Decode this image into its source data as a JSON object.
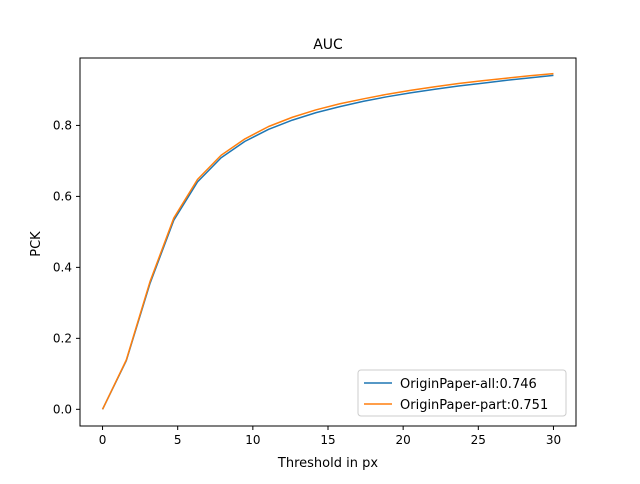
{
  "chart_data": {
    "type": "line",
    "title": "AUC",
    "xlabel": "Threshold in px",
    "ylabel": "PCK",
    "xlim": [
      -1.5,
      31.5
    ],
    "ylim": [
      -0.047,
      0.99
    ],
    "xticks": [
      0,
      5,
      10,
      15,
      20,
      25,
      30
    ],
    "xtick_labels": [
      "0",
      "5",
      "10",
      "15",
      "20",
      "25",
      "30"
    ],
    "yticks": [
      0.0,
      0.2,
      0.4,
      0.6,
      0.8
    ],
    "ytick_labels": [
      "0.0",
      "0.2",
      "0.4",
      "0.6",
      "0.8"
    ],
    "grid": false,
    "legend_position": "lower-right",
    "x": [
      0,
      1.58,
      3.16,
      4.74,
      6.32,
      7.89,
      9.47,
      11.05,
      12.63,
      14.21,
      15.79,
      17.37,
      18.95,
      20.53,
      22.11,
      23.68,
      25.26,
      26.84,
      28.42,
      30
    ],
    "series": [
      {
        "name": "OriginPaper-all:0.746",
        "color": "#1f77b4",
        "values": [
          0.0,
          0.137,
          0.355,
          0.533,
          0.641,
          0.709,
          0.755,
          0.789,
          0.815,
          0.836,
          0.853,
          0.868,
          0.881,
          0.892,
          0.902,
          0.911,
          0.919,
          0.927,
          0.934,
          0.941
        ]
      },
      {
        "name": "OriginPaper-part:0.751",
        "color": "#ff7f0e",
        "values": [
          0.0,
          0.139,
          0.36,
          0.539,
          0.648,
          0.716,
          0.762,
          0.797,
          0.823,
          0.844,
          0.861,
          0.875,
          0.888,
          0.899,
          0.909,
          0.918,
          0.926,
          0.933,
          0.94,
          0.946
        ]
      }
    ]
  }
}
